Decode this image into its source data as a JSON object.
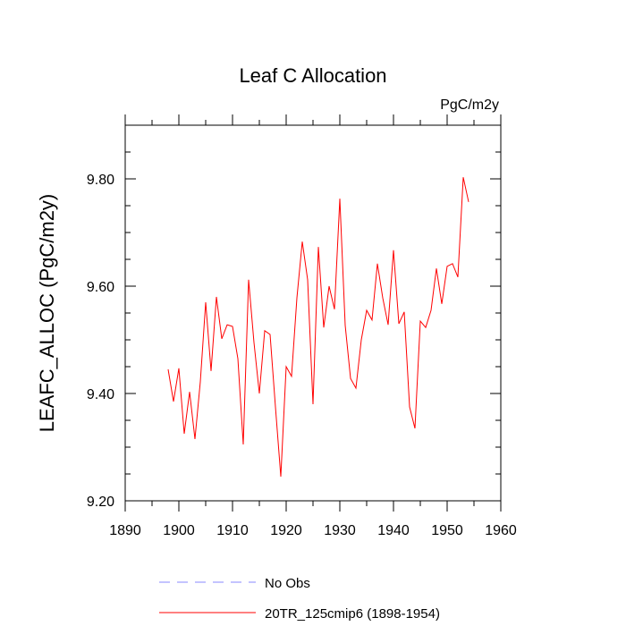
{
  "chart_data": {
    "type": "line",
    "title": "Leaf C Allocation",
    "units": "PgC/m2y",
    "xlabel": "",
    "ylabel": "LEAFC_ALLOC  (PgC/m2y)",
    "xlim": [
      1890,
      1960
    ],
    "ylim": [
      9.2,
      9.9
    ],
    "x_ticks": [
      1890,
      1900,
      1910,
      1920,
      1930,
      1940,
      1950,
      1960
    ],
    "x_tick_labels": [
      "1890",
      "1900",
      "1910",
      "1920",
      "1930",
      "1940",
      "1950",
      "1960"
    ],
    "y_ticks": [
      9.2,
      9.4,
      9.6,
      9.8
    ],
    "y_tick_labels": [
      "9.20",
      "9.40",
      "9.60",
      "9.80"
    ],
    "grid": false,
    "legend_position": "bottom",
    "series": [
      {
        "name": "20TR_125cmip6 (1898-1954)",
        "color": "#ff0000",
        "style": "solid",
        "x": [
          1898,
          1899,
          1900,
          1901,
          1902,
          1903,
          1904,
          1905,
          1906,
          1907,
          1908,
          1909,
          1910,
          1911,
          1912,
          1913,
          1914,
          1915,
          1916,
          1917,
          1918,
          1919,
          1920,
          1921,
          1922,
          1923,
          1924,
          1925,
          1926,
          1927,
          1928,
          1929,
          1930,
          1931,
          1932,
          1933,
          1934,
          1935,
          1936,
          1937,
          1938,
          1939,
          1940,
          1941,
          1942,
          1943,
          1944,
          1945,
          1946,
          1947,
          1948,
          1949,
          1950,
          1951,
          1952,
          1953,
          1954
        ],
        "values": [
          9.445,
          9.385,
          9.447,
          9.325,
          9.403,
          9.315,
          9.422,
          9.57,
          9.442,
          9.58,
          9.502,
          9.528,
          9.525,
          9.465,
          9.305,
          9.612,
          9.495,
          9.4,
          9.517,
          9.51,
          9.375,
          9.245,
          9.45,
          9.432,
          9.578,
          9.683,
          9.612,
          9.38,
          9.673,
          9.523,
          9.6,
          9.557,
          9.763,
          9.527,
          9.428,
          9.41,
          9.5,
          9.555,
          9.537,
          9.642,
          9.578,
          9.528,
          9.667,
          9.53,
          9.552,
          9.375,
          9.335,
          9.535,
          9.523,
          9.555,
          9.633,
          9.567,
          9.637,
          9.642,
          9.617,
          9.803,
          9.757
        ]
      }
    ],
    "legend": [
      {
        "label": "No Obs",
        "color": "#8a8aff",
        "style": "dashed"
      },
      {
        "label": "20TR_125cmip6 (1898-1954)",
        "color": "#ff0000",
        "style": "solid"
      }
    ]
  }
}
